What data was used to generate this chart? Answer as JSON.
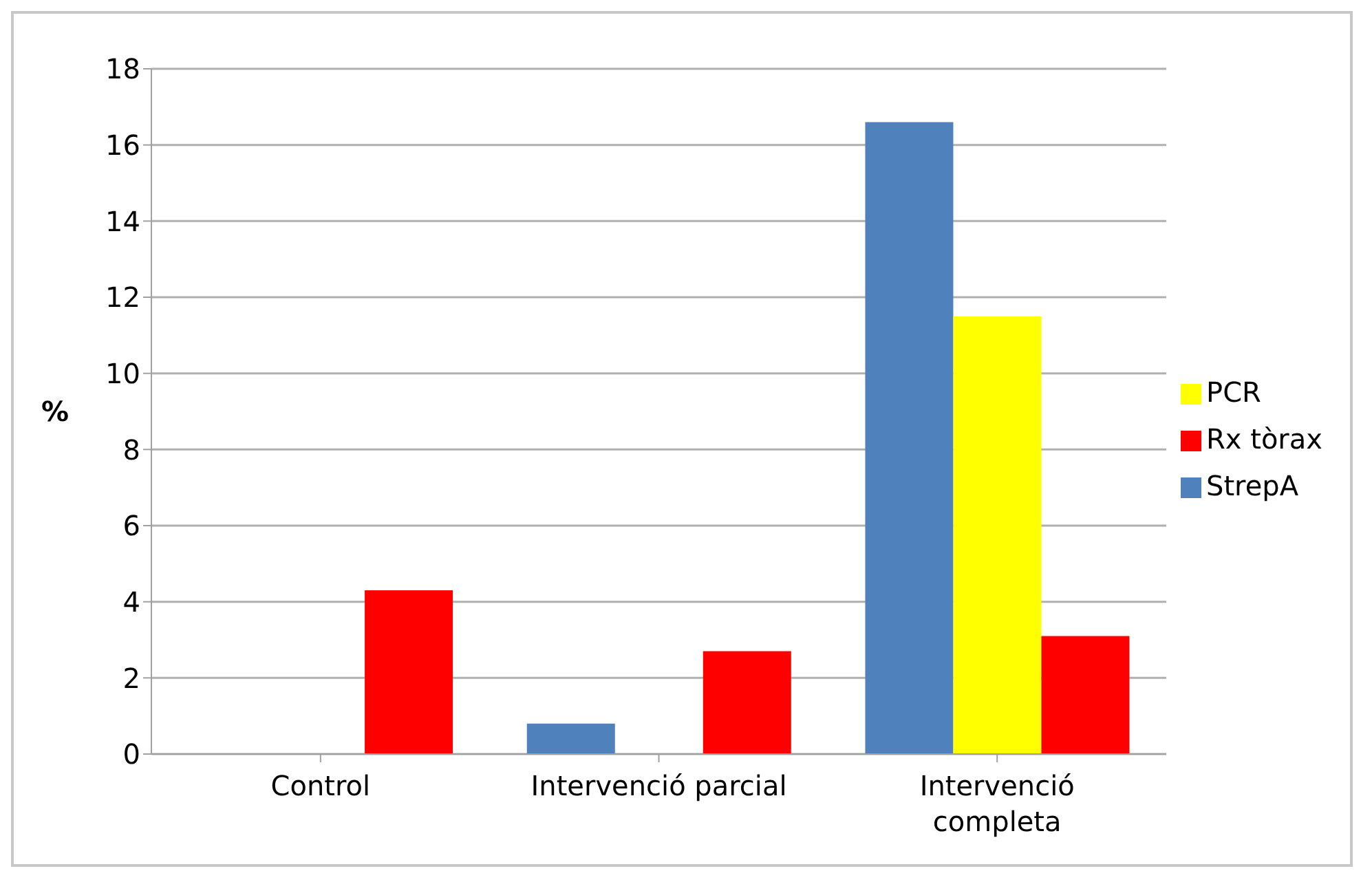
{
  "chart_data": {
    "type": "bar",
    "ylabel": "%",
    "categories": [
      "Control",
      "Intervenció parcial",
      "Intervenció completa"
    ],
    "series": [
      {
        "name": "StrepA",
        "color": "#4f81bd",
        "values": [
          0,
          0.8,
          16.6
        ]
      },
      {
        "name": "PCR",
        "color": "#ffff00",
        "values": [
          0,
          0,
          11.5
        ]
      },
      {
        "name": "Rx tòrax",
        "color": "#ff0000",
        "values": [
          4.3,
          2.7,
          3.1
        ]
      }
    ],
    "ylim": [
      0,
      18
    ],
    "yticks": [
      0,
      2,
      4,
      6,
      8,
      10,
      12,
      14,
      16,
      18
    ],
    "grid": "y",
    "legend": "right"
  }
}
